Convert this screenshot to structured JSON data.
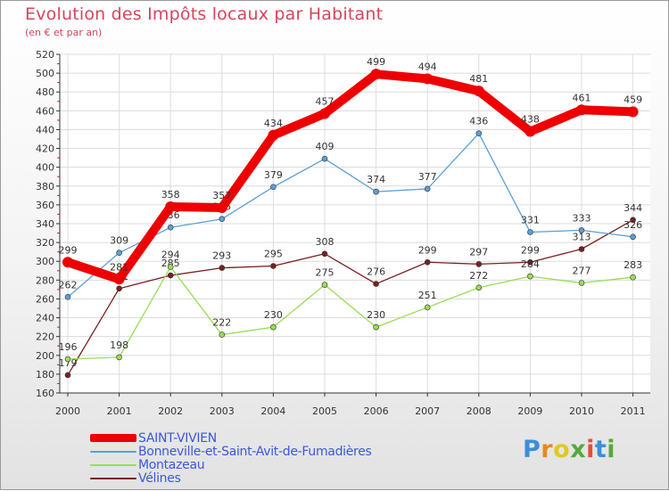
{
  "title": "Evolution des Impôts locaux par Habitant",
  "subtitle": "(en € et par an)",
  "logo_text": "Proxiti",
  "logo_colors": [
    "#3b8fd6",
    "#e8891a",
    "#e2c81f",
    "#55a93a",
    "#e84b3c",
    "#3b8fd6",
    "#55a93a"
  ],
  "chart_data": {
    "type": "line",
    "x": [
      "2000",
      "2001",
      "2002",
      "2003",
      "2004",
      "2005",
      "2006",
      "2007",
      "2008",
      "2009",
      "2010",
      "2011"
    ],
    "ylim": [
      160,
      520
    ],
    "yticks": [
      160,
      180,
      200,
      220,
      240,
      260,
      280,
      300,
      320,
      340,
      360,
      380,
      400,
      420,
      440,
      460,
      480,
      500,
      520
    ],
    "grid": true,
    "legend_position": "bottom-left",
    "series": [
      {
        "name": "SAINT-VIVIEN",
        "color": "#ee0000",
        "values": [
          299,
          281,
          358,
          357,
          434,
          457,
          499,
          494,
          481,
          438,
          461,
          459
        ]
      },
      {
        "name": "Bonneville-et-Saint-Avit-de-Fumadières",
        "color": "#5b9fd4",
        "values": [
          262,
          309,
          336,
          345,
          379,
          409,
          374,
          377,
          436,
          331,
          333,
          326
        ]
      },
      {
        "name": "Montazeau",
        "color": "#99dd55",
        "values": [
          196,
          198,
          294,
          222,
          230,
          275,
          230,
          251,
          272,
          284,
          277,
          283
        ]
      },
      {
        "name": "Vélines",
        "color": "#7a1f1f",
        "values": [
          179,
          271,
          285,
          293,
          295,
          308,
          276,
          299,
          297,
          299,
          313,
          344
        ]
      }
    ]
  }
}
